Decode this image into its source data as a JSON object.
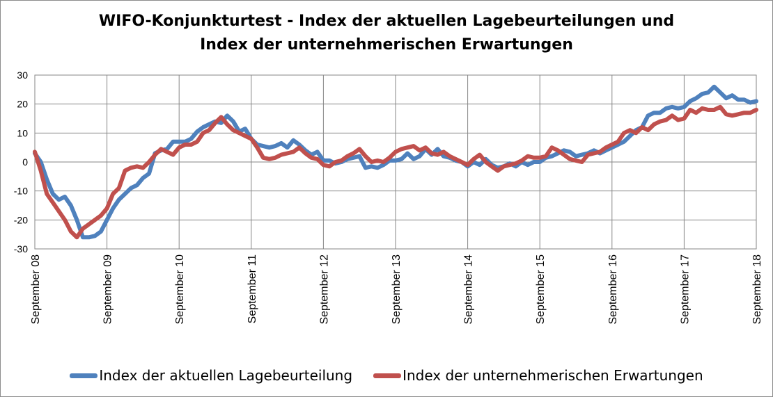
{
  "chart_data": {
    "type": "line",
    "title_lines": [
      "WIFO-Konjunkturtest - Index der aktuellen Lagebeurteilungen und",
      "Index der unternehmerischen Erwartungen"
    ],
    "xlabel": "",
    "ylabel": "",
    "ylim": [
      -30,
      30
    ],
    "yticks": [
      -30,
      -20,
      -10,
      0,
      10,
      20,
      30
    ],
    "xlim": [
      2008.667,
      2018.667
    ],
    "xticks": [
      {
        "x": 2008.667,
        "label": "September 08"
      },
      {
        "x": 2009.667,
        "label": "September 09"
      },
      {
        "x": 2010.667,
        "label": "September 10"
      },
      {
        "x": 2011.667,
        "label": "September 11"
      },
      {
        "x": 2012.667,
        "label": "September 12"
      },
      {
        "x": 2013.667,
        "label": "September 13"
      },
      {
        "x": 2014.667,
        "label": "September 14"
      },
      {
        "x": 2015.667,
        "label": "September 15"
      },
      {
        "x": 2016.667,
        "label": "September 16"
      },
      {
        "x": 2017.667,
        "label": "September 17"
      },
      {
        "x": 2018.667,
        "label": "September 18"
      }
    ],
    "grid": true,
    "legend_position": "bottom",
    "series": [
      {
        "name": "Index der aktuellen Lagebeurteilung",
        "color": "#4f81bd",
        "points": [
          [
            2008.667,
            3
          ],
          [
            2008.75,
            0
          ],
          [
            2008.833,
            -6
          ],
          [
            2008.917,
            -11
          ],
          [
            2009.0,
            -13
          ],
          [
            2009.083,
            -12
          ],
          [
            2009.167,
            -15
          ],
          [
            2009.25,
            -20
          ],
          [
            2009.333,
            -26
          ],
          [
            2009.417,
            -26
          ],
          [
            2009.5,
            -25.5
          ],
          [
            2009.583,
            -24
          ],
          [
            2009.667,
            -20
          ],
          [
            2009.75,
            -16
          ],
          [
            2009.833,
            -13
          ],
          [
            2009.917,
            -11
          ],
          [
            2010.0,
            -9
          ],
          [
            2010.083,
            -8
          ],
          [
            2010.167,
            -5.5
          ],
          [
            2010.25,
            -4
          ],
          [
            2010.333,
            3
          ],
          [
            2010.417,
            4
          ],
          [
            2010.5,
            4.5
          ],
          [
            2010.583,
            7
          ],
          [
            2010.667,
            7
          ],
          [
            2010.75,
            7
          ],
          [
            2010.833,
            8
          ],
          [
            2010.917,
            10.5
          ],
          [
            2011.0,
            12
          ],
          [
            2011.083,
            13
          ],
          [
            2011.167,
            14
          ],
          [
            2011.25,
            13.5
          ],
          [
            2011.333,
            16
          ],
          [
            2011.417,
            14
          ],
          [
            2011.5,
            10.5
          ],
          [
            2011.583,
            11.5
          ],
          [
            2011.667,
            8
          ],
          [
            2011.75,
            6
          ],
          [
            2011.833,
            5.5
          ],
          [
            2011.917,
            5
          ],
          [
            2012.0,
            5.5
          ],
          [
            2012.083,
            6.5
          ],
          [
            2012.167,
            5
          ],
          [
            2012.25,
            7.5
          ],
          [
            2012.333,
            6
          ],
          [
            2012.417,
            4
          ],
          [
            2012.5,
            2.5
          ],
          [
            2012.583,
            3.5
          ],
          [
            2012.667,
            0.5
          ],
          [
            2012.75,
            0.5
          ],
          [
            2012.833,
            -0.5
          ],
          [
            2012.917,
            0
          ],
          [
            2013.0,
            1
          ],
          [
            2013.083,
            1.5
          ],
          [
            2013.167,
            2
          ],
          [
            2013.25,
            -2
          ],
          [
            2013.333,
            -1.5
          ],
          [
            2013.417,
            -2
          ],
          [
            2013.5,
            -1
          ],
          [
            2013.583,
            0.5
          ],
          [
            2013.667,
            0.5
          ],
          [
            2013.75,
            1
          ],
          [
            2013.833,
            3
          ],
          [
            2013.917,
            1
          ],
          [
            2014.0,
            2
          ],
          [
            2014.083,
            4.5
          ],
          [
            2014.167,
            2.5
          ],
          [
            2014.25,
            4.5
          ],
          [
            2014.333,
            2
          ],
          [
            2014.417,
            1.5
          ],
          [
            2014.5,
            0.5
          ],
          [
            2014.583,
            0
          ],
          [
            2014.667,
            -1.5
          ],
          [
            2014.75,
            0
          ],
          [
            2014.833,
            -1
          ],
          [
            2014.917,
            1
          ],
          [
            2015.0,
            -1
          ],
          [
            2015.083,
            -2
          ],
          [
            2015.167,
            -1.5
          ],
          [
            2015.25,
            -0.5
          ],
          [
            2015.333,
            -1.5
          ],
          [
            2015.417,
            0
          ],
          [
            2015.5,
            -1
          ],
          [
            2015.583,
            0
          ],
          [
            2015.667,
            0
          ],
          [
            2015.75,
            1.5
          ],
          [
            2015.833,
            2
          ],
          [
            2015.917,
            3
          ],
          [
            2016.0,
            4
          ],
          [
            2016.083,
            3.5
          ],
          [
            2016.167,
            2
          ],
          [
            2016.25,
            2.5
          ],
          [
            2016.333,
            3
          ],
          [
            2016.417,
            4
          ],
          [
            2016.5,
            3
          ],
          [
            2016.583,
            4
          ],
          [
            2016.667,
            5
          ],
          [
            2016.75,
            6
          ],
          [
            2016.833,
            7
          ],
          [
            2016.917,
            9
          ],
          [
            2017.0,
            11
          ],
          [
            2017.083,
            12
          ],
          [
            2017.167,
            16
          ],
          [
            2017.25,
            17
          ],
          [
            2017.333,
            17
          ],
          [
            2017.417,
            18.5
          ],
          [
            2017.5,
            19
          ],
          [
            2017.583,
            18.5
          ],
          [
            2017.667,
            19
          ],
          [
            2017.75,
            21
          ],
          [
            2017.833,
            22
          ],
          [
            2017.917,
            23.5
          ],
          [
            2018.0,
            24
          ],
          [
            2018.083,
            26
          ],
          [
            2018.167,
            24
          ],
          [
            2018.25,
            22
          ],
          [
            2018.333,
            23
          ],
          [
            2018.417,
            21.5
          ],
          [
            2018.5,
            21.5
          ],
          [
            2018.583,
            20.5
          ],
          [
            2018.667,
            21
          ]
        ]
      },
      {
        "name": "Index der unternehmerischen Erwartungen",
        "color": "#c0504d",
        "points": [
          [
            2008.667,
            3.5
          ],
          [
            2008.75,
            -3
          ],
          [
            2008.833,
            -11
          ],
          [
            2008.917,
            -14
          ],
          [
            2009.0,
            -17
          ],
          [
            2009.083,
            -20
          ],
          [
            2009.167,
            -24
          ],
          [
            2009.25,
            -26
          ],
          [
            2009.333,
            -23
          ],
          [
            2009.417,
            -21.5
          ],
          [
            2009.5,
            -20
          ],
          [
            2009.583,
            -18.5
          ],
          [
            2009.667,
            -16
          ],
          [
            2009.75,
            -11
          ],
          [
            2009.833,
            -9
          ],
          [
            2009.917,
            -3
          ],
          [
            2010.0,
            -2
          ],
          [
            2010.083,
            -1.5
          ],
          [
            2010.167,
            -2
          ],
          [
            2010.25,
            0
          ],
          [
            2010.333,
            2.5
          ],
          [
            2010.417,
            4.5
          ],
          [
            2010.5,
            3.5
          ],
          [
            2010.583,
            2.5
          ],
          [
            2010.667,
            5
          ],
          [
            2010.75,
            6
          ],
          [
            2010.833,
            6
          ],
          [
            2010.917,
            7
          ],
          [
            2011.0,
            10
          ],
          [
            2011.083,
            11
          ],
          [
            2011.167,
            13.5
          ],
          [
            2011.25,
            15.5
          ],
          [
            2011.333,
            13
          ],
          [
            2011.417,
            11
          ],
          [
            2011.5,
            10
          ],
          [
            2011.583,
            9
          ],
          [
            2011.667,
            8
          ],
          [
            2011.75,
            5
          ],
          [
            2011.833,
            1.5
          ],
          [
            2011.917,
            1
          ],
          [
            2012.0,
            1.5
          ],
          [
            2012.083,
            2.5
          ],
          [
            2012.167,
            3
          ],
          [
            2012.25,
            3.5
          ],
          [
            2012.333,
            5
          ],
          [
            2012.417,
            3
          ],
          [
            2012.5,
            1.5
          ],
          [
            2012.583,
            1
          ],
          [
            2012.667,
            -1
          ],
          [
            2012.75,
            -1.5
          ],
          [
            2012.833,
            0
          ],
          [
            2012.917,
            0.5
          ],
          [
            2013.0,
            2
          ],
          [
            2013.083,
            3
          ],
          [
            2013.167,
            4.5
          ],
          [
            2013.25,
            2
          ],
          [
            2013.333,
            0
          ],
          [
            2013.417,
            0.5
          ],
          [
            2013.5,
            0
          ],
          [
            2013.583,
            1.5
          ],
          [
            2013.667,
            3.5
          ],
          [
            2013.75,
            4.5
          ],
          [
            2013.833,
            5
          ],
          [
            2013.917,
            5.5
          ],
          [
            2014.0,
            4
          ],
          [
            2014.083,
            5
          ],
          [
            2014.167,
            3
          ],
          [
            2014.25,
            2.5
          ],
          [
            2014.333,
            3.5
          ],
          [
            2014.417,
            2
          ],
          [
            2014.5,
            1
          ],
          [
            2014.583,
            0
          ],
          [
            2014.667,
            -1
          ],
          [
            2014.75,
            1
          ],
          [
            2014.833,
            2.5
          ],
          [
            2014.917,
            0
          ],
          [
            2015.0,
            -1.5
          ],
          [
            2015.083,
            -3
          ],
          [
            2015.167,
            -1.5
          ],
          [
            2015.25,
            -1
          ],
          [
            2015.333,
            -0.5
          ],
          [
            2015.417,
            0.5
          ],
          [
            2015.5,
            2
          ],
          [
            2015.583,
            1.5
          ],
          [
            2015.667,
            1.5
          ],
          [
            2015.75,
            2
          ],
          [
            2015.833,
            5
          ],
          [
            2015.917,
            4
          ],
          [
            2016.0,
            2.5
          ],
          [
            2016.083,
            1
          ],
          [
            2016.167,
            0.5
          ],
          [
            2016.25,
            0
          ],
          [
            2016.333,
            2.5
          ],
          [
            2016.417,
            3
          ],
          [
            2016.5,
            3.5
          ],
          [
            2016.583,
            5
          ],
          [
            2016.667,
            6
          ],
          [
            2016.75,
            7
          ],
          [
            2016.833,
            10
          ],
          [
            2016.917,
            11
          ],
          [
            2017.0,
            10
          ],
          [
            2017.083,
            12
          ],
          [
            2017.167,
            11
          ],
          [
            2017.25,
            13
          ],
          [
            2017.333,
            14
          ],
          [
            2017.417,
            14.5
          ],
          [
            2017.5,
            16
          ],
          [
            2017.583,
            14.5
          ],
          [
            2017.667,
            15
          ],
          [
            2017.75,
            18
          ],
          [
            2017.833,
            17
          ],
          [
            2017.917,
            18.5
          ],
          [
            2018.0,
            18
          ],
          [
            2018.083,
            18
          ],
          [
            2018.167,
            19
          ],
          [
            2018.25,
            16.5
          ],
          [
            2018.333,
            16
          ],
          [
            2018.417,
            16.5
          ],
          [
            2018.5,
            17
          ],
          [
            2018.583,
            17
          ],
          [
            2018.667,
            18
          ]
        ]
      }
    ]
  }
}
